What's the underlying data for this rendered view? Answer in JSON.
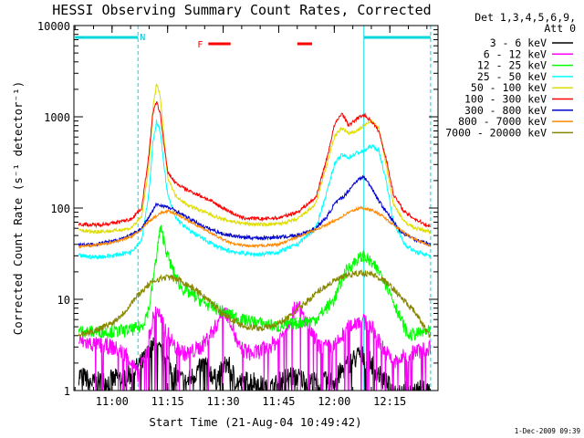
{
  "chart_data": {
    "type": "line",
    "title": "HESSI Observing Summary Count Rates, Corrected",
    "xlabel": "Start Time (21-Aug-04 10:49:42)",
    "ylabel": "Corrected Count Rate (s⁻¹ detector⁻¹)",
    "x_unit": "time of day (hh:mm)",
    "xlim": [
      "10:49:42",
      "12:28:00"
    ],
    "ylim": [
      1,
      10000
    ],
    "y_scale": "log",
    "x_ticks": [
      "11:00",
      "11:15",
      "11:30",
      "11:45",
      "12:00",
      "12:15"
    ],
    "y_ticks": [
      1,
      10,
      100,
      1000,
      10000
    ],
    "y_tick_labels": [
      "1",
      "10",
      "100",
      "1000",
      "10000"
    ],
    "legend_header": [
      "Det 1,3,4,5,6,9,",
      "Att 0"
    ],
    "legend_position": "right",
    "footer_date": "1-Dec-2009 09:39",
    "night_bars": [
      {
        "start": "10:50",
        "end": "11:07",
        "label": "N"
      },
      {
        "start": "12:08",
        "end": "12:26",
        "label": ""
      }
    ],
    "flare_bars": [
      {
        "start": "11:26",
        "end": "11:32",
        "label": "F"
      },
      {
        "start": "11:50",
        "end": "11:54",
        "label": ""
      }
    ],
    "vertical_lines": [
      {
        "time": "10:49:42",
        "style": "solid"
      },
      {
        "time": "11:07",
        "style": "dashed"
      },
      {
        "time": "12:08",
        "style": "solid"
      },
      {
        "time": "12:26",
        "style": "dashed"
      }
    ],
    "series": [
      {
        "name": "3 - 6 keV",
        "color": "#000000",
        "points": [
          [
            "10:51",
            1.5
          ],
          [
            "10:55",
            1.2
          ],
          [
            "11:00",
            1.3
          ],
          [
            "11:05",
            1.5
          ],
          [
            "11:08",
            2
          ],
          [
            "11:11",
            3
          ],
          [
            "11:14",
            2.5
          ],
          [
            "11:17",
            1.5
          ],
          [
            "11:20",
            1.2
          ],
          [
            "11:25",
            2
          ],
          [
            "11:28",
            1.3
          ],
          [
            "11:31",
            2
          ],
          [
            "11:34",
            1.2
          ],
          [
            "11:38",
            1.3
          ],
          [
            "11:42",
            1
          ],
          [
            "11:45",
            1.2
          ],
          [
            "11:48",
            1.5
          ],
          [
            "11:52",
            1.3
          ],
          [
            "11:56",
            1.2
          ],
          [
            "12:00",
            1.3
          ],
          [
            "12:04",
            2
          ],
          [
            "12:07",
            2.5
          ],
          [
            "12:10",
            2
          ],
          [
            "12:13",
            1.3
          ],
          [
            "12:16",
            1
          ],
          [
            "12:20",
            1
          ],
          [
            "12:26",
            1
          ]
        ]
      },
      {
        "name": "6 - 12 keV",
        "color": "#ff00ff",
        "points": [
          [
            "10:51",
            3.5
          ],
          [
            "10:55",
            3.2
          ],
          [
            "11:00",
            3
          ],
          [
            "11:04",
            2.5
          ],
          [
            "11:07",
            1.5
          ],
          [
            "11:09",
            2.5
          ],
          [
            "11:11",
            6
          ],
          [
            "11:12",
            8
          ],
          [
            "11:14",
            5
          ],
          [
            "11:17",
            3
          ],
          [
            "11:20",
            2.5
          ],
          [
            "11:24",
            3
          ],
          [
            "11:28",
            5
          ],
          [
            "11:30",
            8
          ],
          [
            "11:32",
            6
          ],
          [
            "11:34",
            3
          ],
          [
            "11:38",
            2.5
          ],
          [
            "11:42",
            3
          ],
          [
            "11:45",
            3.5
          ],
          [
            "11:48",
            6
          ],
          [
            "11:50",
            9
          ],
          [
            "11:53",
            5
          ],
          [
            "11:56",
            3
          ],
          [
            "12:00",
            3
          ],
          [
            "12:04",
            5
          ],
          [
            "12:07",
            6
          ],
          [
            "12:10",
            5
          ],
          [
            "12:13",
            3
          ],
          [
            "12:16",
            2
          ],
          [
            "12:20",
            2.5
          ],
          [
            "12:26",
            3
          ]
        ]
      },
      {
        "name": "12 - 25 keV",
        "color": "#00ff00",
        "points": [
          [
            "10:51",
            4.5
          ],
          [
            "10:55",
            4.4
          ],
          [
            "11:00",
            4.4
          ],
          [
            "11:05",
            4.6
          ],
          [
            "11:08",
            5
          ],
          [
            "11:10",
            8
          ],
          [
            "11:12",
            30
          ],
          [
            "11:13",
            60
          ],
          [
            "11:14",
            45
          ],
          [
            "11:15",
            30
          ],
          [
            "11:17",
            18
          ],
          [
            "11:19",
            13
          ],
          [
            "11:22",
            11
          ],
          [
            "11:25",
            9
          ],
          [
            "11:28",
            8
          ],
          [
            "11:31",
            7
          ],
          [
            "11:35",
            6
          ],
          [
            "11:40",
            5.5
          ],
          [
            "11:45",
            5
          ],
          [
            "11:50",
            5.5
          ],
          [
            "11:55",
            6
          ],
          [
            "12:00",
            10
          ],
          [
            "12:03",
            20
          ],
          [
            "12:06",
            27
          ],
          [
            "12:08",
            30
          ],
          [
            "12:10",
            25
          ],
          [
            "12:13",
            18
          ],
          [
            "12:15",
            12
          ],
          [
            "12:18",
            6
          ],
          [
            "12:20",
            4
          ],
          [
            "12:26",
            4.5
          ]
        ]
      },
      {
        "name": "25 - 50 keV",
        "color": "#00ffff",
        "points": [
          [
            "10:51",
            30
          ],
          [
            "10:55",
            29
          ],
          [
            "11:00",
            30
          ],
          [
            "11:05",
            33
          ],
          [
            "11:08",
            45
          ],
          [
            "11:10",
            150
          ],
          [
            "11:11",
            500
          ],
          [
            "11:12",
            900
          ],
          [
            "11:13",
            700
          ],
          [
            "11:14",
            300
          ],
          [
            "11:15",
            140
          ],
          [
            "11:17",
            80
          ],
          [
            "11:20",
            60
          ],
          [
            "11:25",
            45
          ],
          [
            "11:30",
            35
          ],
          [
            "11:35",
            32
          ],
          [
            "11:40",
            31
          ],
          [
            "11:45",
            33
          ],
          [
            "11:50",
            40
          ],
          [
            "11:55",
            60
          ],
          [
            "11:58",
            150
          ],
          [
            "12:00",
            300
          ],
          [
            "12:02",
            380
          ],
          [
            "12:04",
            360
          ],
          [
            "12:06",
            400
          ],
          [
            "12:08",
            420
          ],
          [
            "12:10",
            480
          ],
          [
            "12:12",
            430
          ],
          [
            "12:14",
            200
          ],
          [
            "12:16",
            70
          ],
          [
            "12:19",
            40
          ],
          [
            "12:22",
            33
          ],
          [
            "12:26",
            30
          ]
        ]
      },
      {
        "name": "50 - 100 keV",
        "color": "#dddd00",
        "points": [
          [
            "10:51",
            57
          ],
          [
            "10:55",
            55
          ],
          [
            "11:00",
            56
          ],
          [
            "11:05",
            60
          ],
          [
            "11:08",
            80
          ],
          [
            "11:10",
            300
          ],
          [
            "11:11",
            1200
          ],
          [
            "11:12",
            2300
          ],
          [
            "11:13",
            1700
          ],
          [
            "11:14",
            600
          ],
          [
            "11:15",
            220
          ],
          [
            "11:17",
            140
          ],
          [
            "11:20",
            110
          ],
          [
            "11:25",
            90
          ],
          [
            "11:30",
            75
          ],
          [
            "11:35",
            68
          ],
          [
            "11:40",
            66
          ],
          [
            "11:45",
            67
          ],
          [
            "11:50",
            75
          ],
          [
            "11:55",
            110
          ],
          [
            "11:58",
            300
          ],
          [
            "12:00",
            600
          ],
          [
            "12:02",
            750
          ],
          [
            "12:04",
            650
          ],
          [
            "12:06",
            700
          ],
          [
            "12:08",
            800
          ],
          [
            "12:10",
            900
          ],
          [
            "12:12",
            750
          ],
          [
            "12:14",
            300
          ],
          [
            "12:16",
            110
          ],
          [
            "12:19",
            70
          ],
          [
            "12:22",
            60
          ],
          [
            "12:26",
            55
          ]
        ]
      },
      {
        "name": "100 - 300 keV",
        "color": "#ff0000",
        "points": [
          [
            "10:51",
            67
          ],
          [
            "10:55",
            65
          ],
          [
            "11:00",
            68
          ],
          [
            "11:05",
            75
          ],
          [
            "11:08",
            100
          ],
          [
            "11:10",
            400
          ],
          [
            "11:11",
            1100
          ],
          [
            "11:12",
            1450
          ],
          [
            "11:13",
            1100
          ],
          [
            "11:14",
            500
          ],
          [
            "11:15",
            250
          ],
          [
            "11:17",
            190
          ],
          [
            "11:20",
            160
          ],
          [
            "11:25",
            130
          ],
          [
            "11:30",
            100
          ],
          [
            "11:35",
            78
          ],
          [
            "11:40",
            76
          ],
          [
            "11:45",
            78
          ],
          [
            "11:50",
            90
          ],
          [
            "11:55",
            130
          ],
          [
            "11:58",
            350
          ],
          [
            "12:00",
            800
          ],
          [
            "12:02",
            1100
          ],
          [
            "12:04",
            800
          ],
          [
            "12:06",
            950
          ],
          [
            "12:08",
            1050
          ],
          [
            "12:10",
            900
          ],
          [
            "12:12",
            700
          ],
          [
            "12:14",
            350
          ],
          [
            "12:16",
            140
          ],
          [
            "12:19",
            90
          ],
          [
            "12:22",
            75
          ],
          [
            "12:26",
            62
          ]
        ]
      },
      {
        "name": "300 - 800 keV",
        "color": "#0000cc",
        "points": [
          [
            "10:51",
            40
          ],
          [
            "10:55",
            40
          ],
          [
            "11:00",
            43
          ],
          [
            "11:05",
            50
          ],
          [
            "11:08",
            60
          ],
          [
            "11:10",
            80
          ],
          [
            "11:12",
            110
          ],
          [
            "11:14",
            105
          ],
          [
            "11:17",
            95
          ],
          [
            "11:20",
            80
          ],
          [
            "11:25",
            62
          ],
          [
            "11:30",
            52
          ],
          [
            "11:35",
            48
          ],
          [
            "11:40",
            47
          ],
          [
            "11:45",
            48
          ],
          [
            "11:50",
            50
          ],
          [
            "11:55",
            60
          ],
          [
            "11:58",
            80
          ],
          [
            "12:00",
            110
          ],
          [
            "12:03",
            140
          ],
          [
            "12:06",
            200
          ],
          [
            "12:08",
            220
          ],
          [
            "12:10",
            170
          ],
          [
            "12:12",
            120
          ],
          [
            "12:15",
            80
          ],
          [
            "12:18",
            55
          ],
          [
            "12:22",
            45
          ],
          [
            "12:26",
            40
          ]
        ]
      },
      {
        "name": "800 - 7000 keV",
        "color": "#ff8800",
        "points": [
          [
            "10:51",
            38
          ],
          [
            "10:55",
            39
          ],
          [
            "11:00",
            42
          ],
          [
            "11:05",
            48
          ],
          [
            "11:08",
            58
          ],
          [
            "11:10",
            72
          ],
          [
            "11:13",
            88
          ],
          [
            "11:15",
            92
          ],
          [
            "11:17",
            88
          ],
          [
            "11:20",
            75
          ],
          [
            "11:25",
            58
          ],
          [
            "11:30",
            45
          ],
          [
            "11:33",
            40
          ],
          [
            "11:38",
            38
          ],
          [
            "11:45",
            40
          ],
          [
            "11:50",
            48
          ],
          [
            "11:55",
            58
          ],
          [
            "12:00",
            72
          ],
          [
            "12:04",
            90
          ],
          [
            "12:07",
            100
          ],
          [
            "12:08",
            100
          ],
          [
            "12:10",
            95
          ],
          [
            "12:13",
            82
          ],
          [
            "12:16",
            65
          ],
          [
            "12:20",
            50
          ],
          [
            "12:26",
            38
          ]
        ]
      },
      {
        "name": "7000 - 20000 keV",
        "color": "#888800",
        "points": [
          [
            "10:51",
            4
          ],
          [
            "10:55",
            4.5
          ],
          [
            "11:00",
            5.5
          ],
          [
            "11:03",
            7
          ],
          [
            "11:06",
            10
          ],
          [
            "11:09",
            13.5
          ],
          [
            "11:12",
            16.5
          ],
          [
            "11:15",
            17.5
          ],
          [
            "11:18",
            16.5
          ],
          [
            "11:21",
            14
          ],
          [
            "11:24",
            11.5
          ],
          [
            "11:27",
            9
          ],
          [
            "11:30",
            7
          ],
          [
            "11:33",
            5.8
          ],
          [
            "11:36",
            5
          ],
          [
            "11:40",
            4.8
          ],
          [
            "11:44",
            5.2
          ],
          [
            "11:48",
            6.5
          ],
          [
            "11:52",
            9
          ],
          [
            "11:56",
            12.5
          ],
          [
            "12:00",
            16
          ],
          [
            "12:04",
            18.5
          ],
          [
            "12:07",
            19.5
          ],
          [
            "12:10",
            19
          ],
          [
            "12:13",
            16.5
          ],
          [
            "12:16",
            13
          ],
          [
            "12:19",
            9.5
          ],
          [
            "12:22",
            7
          ],
          [
            "12:25",
            4.5
          ],
          [
            "12:26",
            4
          ]
        ]
      }
    ]
  }
}
